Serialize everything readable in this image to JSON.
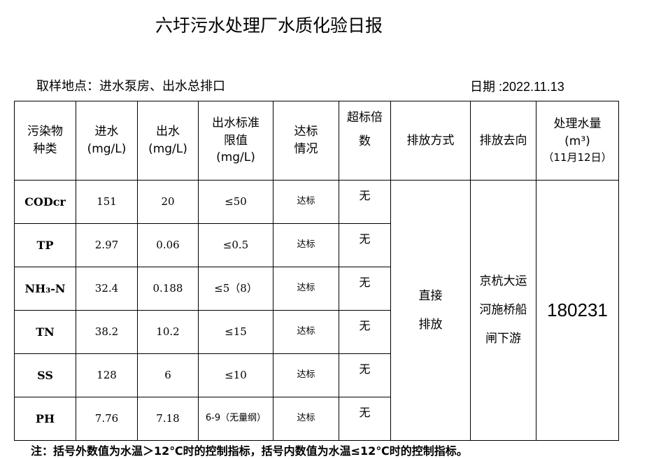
{
  "title": "六圩污水处理厂水质化验日报",
  "location": "取样地点：进水泵房、出水总排口",
  "date": "日期 :2022.11.13",
  "headers": {
    "pollutant": "污染物种类",
    "influent": "进水(mg/L)",
    "effluent": "出水(mg/L)",
    "limit": "出水标准限值(mg/L)",
    "status": "达标情况",
    "exceed": "超标倍数",
    "method": "排放方式",
    "destination": "排放去向",
    "volume": "处理水量(m³)",
    "volume_date": "（11月12日）"
  },
  "rows": [
    {
      "name": "CODcr",
      "in": "151",
      "out": "20",
      "limit": "≤50",
      "status": "达标",
      "exceed": "无"
    },
    {
      "name": "TP",
      "in": "2.97",
      "out": "0.06",
      "limit": "≤0.5",
      "status": "达标",
      "exceed": "无"
    },
    {
      "name": "NH₃-N",
      "in": "32.4",
      "out": "0.188",
      "limit": "≤5（8）",
      "status": "达标",
      "exceed": "无"
    },
    {
      "name": "TN",
      "in": "38.2",
      "out": "10.2",
      "limit": "≤15",
      "status": "达标",
      "exceed": "无"
    },
    {
      "name": "SS",
      "in": "128",
      "out": "6",
      "limit": "≤10",
      "status": "达标",
      "exceed": "无"
    },
    {
      "name": "PH",
      "in": "7.76",
      "out": "7.18",
      "limit": "6-9（无量纲）",
      "status": "达标",
      "exceed": "无"
    }
  ],
  "method": "直接排放",
  "destination": "京杭大运河施桥船闸下游",
  "volume": "180231",
  "note": "注：括号外数值为水温＞12℃时的控制指标，括号内数值为水温≤12℃时的控制指标。"
}
